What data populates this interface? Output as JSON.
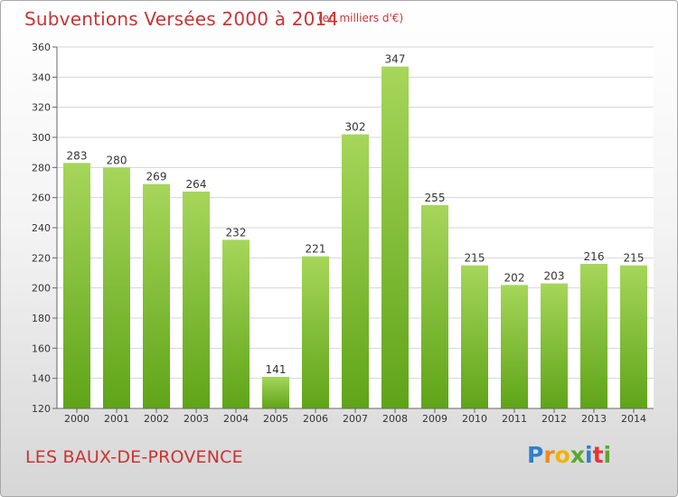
{
  "header": {
    "title": "Subventions Versées 2000 à 2014",
    "unit": "(en milliers d'€)"
  },
  "footer": {
    "commune": "LES BAUX-DE-PROVENCE",
    "logo_letters": [
      "P",
      "r",
      "o",
      "x",
      "i",
      "t",
      "i"
    ],
    "logo_colors": [
      "#2f7fd0",
      "#f08a1c",
      "#f0b400",
      "#58a82a",
      "#2f7fd0",
      "#e6333b",
      "#58a82a"
    ]
  },
  "colors": {
    "bar_light": "#a6d65a",
    "bar_dark": "#5fa418",
    "grid": "#d4d4d4",
    "accent": "#cc3333"
  },
  "chart_data": {
    "type": "bar",
    "categories": [
      "2000",
      "2001",
      "2002",
      "2003",
      "2004",
      "2005",
      "2006",
      "2007",
      "2008",
      "2009",
      "2010",
      "2011",
      "2012",
      "2013",
      "2014"
    ],
    "values": [
      283,
      280,
      269,
      264,
      232,
      141,
      221,
      302,
      347,
      255,
      215,
      202,
      203,
      216,
      215
    ],
    "title": "Subventions Versées 2000 à 2014",
    "xlabel": "",
    "ylabel": "",
    "ylim": [
      120,
      360
    ],
    "yticks": [
      120,
      140,
      160,
      180,
      200,
      220,
      240,
      260,
      280,
      300,
      320,
      340,
      360
    ],
    "grid": true,
    "data_labels": true
  }
}
